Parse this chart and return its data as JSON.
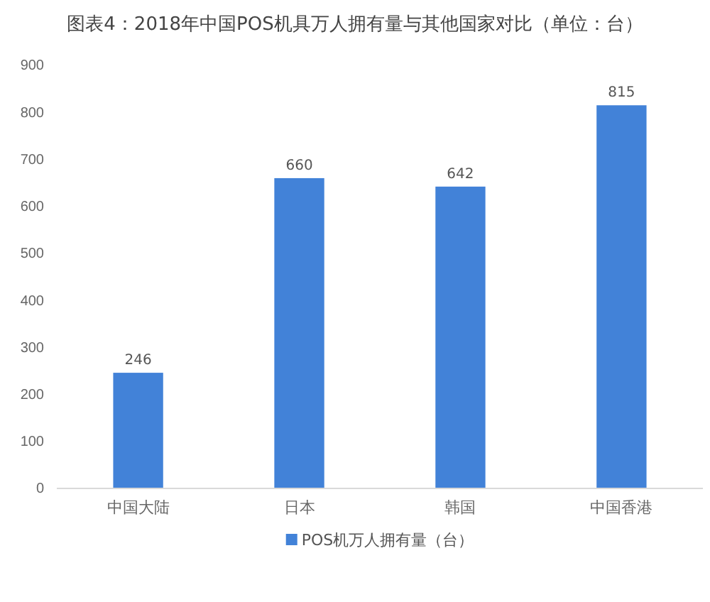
{
  "chart_data": {
    "type": "bar",
    "title": "图表4：2018年中国POS机具万人拥有量与其他国家对比（单位：台）",
    "categories": [
      "中国大陆",
      "日本",
      "韩国",
      "中国香港"
    ],
    "series": [
      {
        "name": "POS机万人拥有量（台）",
        "color": "#4282d8",
        "values": [
          246,
          660,
          642,
          815
        ]
      }
    ],
    "ylim": [
      0,
      900
    ],
    "yticks": [
      0,
      100,
      200,
      300,
      400,
      500,
      600,
      700,
      800,
      900
    ],
    "data_labels": true,
    "grid": false,
    "legend": "bottom"
  }
}
